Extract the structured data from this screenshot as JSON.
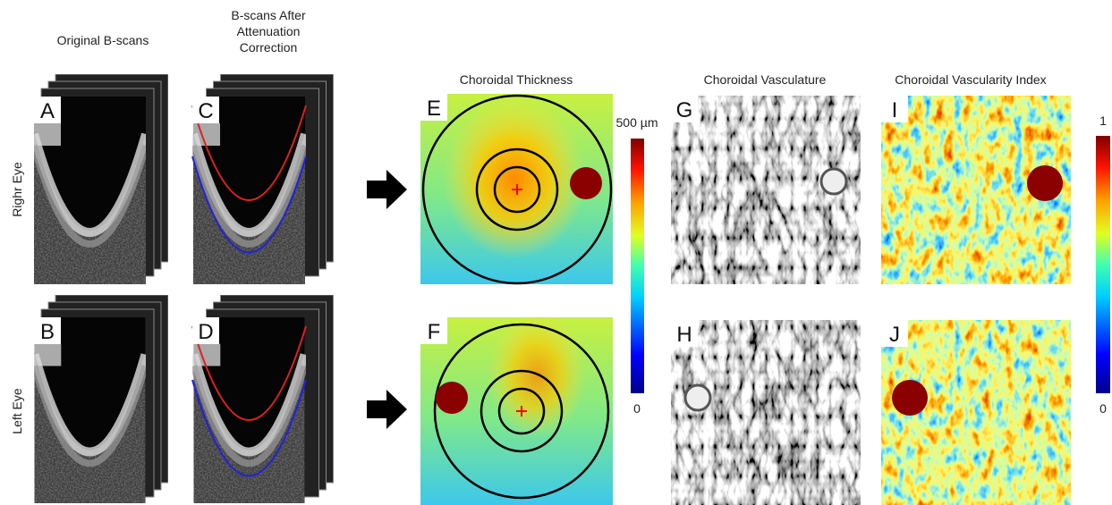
{
  "columns": {
    "original": "Original B-scans",
    "corrected": [
      "B-scans After",
      "Attenuation",
      "Correction"
    ],
    "thickness": "Choroidal Thickness",
    "vasculature": "Choroidal Vasculature",
    "cvi": "Choroidal Vascularity Index"
  },
  "rows": [
    "Righr Eye",
    "Left Eye"
  ],
  "panel_labels": [
    "A",
    "B",
    "C",
    "D",
    "E",
    "F",
    "G",
    "H",
    "I",
    "J"
  ],
  "thickness_colorbar": {
    "top": "500 µm",
    "bottom": "0"
  },
  "cvi_colorbar": {
    "top": "1",
    "bottom": "0"
  }
}
